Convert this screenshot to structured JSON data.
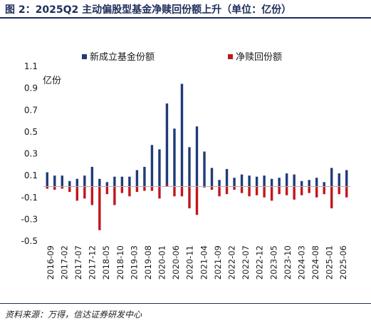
{
  "header": {
    "title": "图 2：2025Q2 主动偏股型基金净赎回份额上升（单位：亿份）"
  },
  "footer": {
    "source": "资料来源：万得，信达证券研发中心"
  },
  "colors": {
    "new_issue": "#1f3b78",
    "net_redemption": "#c0161d",
    "title": "#1f2d5a"
  },
  "chart_data": {
    "type": "bar",
    "ylabel": "亿份",
    "ylim": [
      -0.5,
      1.1
    ],
    "yticks": [
      -0.5,
      -0.3,
      -0.1,
      0.1,
      0.3,
      0.5,
      0.7,
      0.9,
      1.1
    ],
    "ytick_labels": [
      "-0.5",
      "-0.3",
      "-0.1",
      "0.1",
      "0.3",
      "0.5",
      "0.7",
      "0.9",
      "1.1"
    ],
    "legend_position": "top",
    "grid": false,
    "x_tick_labels": [
      "2016-09",
      "2017-02",
      "2017-07",
      "2017-12",
      "2018-05",
      "2018-10",
      "2019-03",
      "2019-08",
      "2020-01",
      "2020-06",
      "2020-11",
      "2021-04",
      "2021-09",
      "2022-02",
      "2022-07",
      "2022-12",
      "2023-05",
      "2023-10",
      "2024-03",
      "2024-08",
      "2025-01",
      "2025-06"
    ],
    "series": [
      {
        "name": "新成立基金份额",
        "values": [
          0.13,
          0.1,
          0.1,
          0.05,
          0.07,
          0.1,
          0.18,
          0.07,
          0.04,
          0.09,
          0.09,
          0.09,
          0.15,
          0.18,
          0.38,
          0.34,
          0.76,
          0.53,
          0.94,
          0.36,
          0.55,
          0.32,
          0.17,
          0.06,
          0.16,
          0.08,
          0.11,
          0.1,
          0.09,
          0.1,
          0.07,
          0.08,
          0.12,
          0.11,
          0.05,
          0.06,
          0.08,
          0.04,
          0.17,
          0.12,
          0.15
        ]
      },
      {
        "name": "净赎回份额",
        "values": [
          -0.02,
          -0.03,
          -0.02,
          -0.05,
          -0.13,
          -0.11,
          -0.17,
          -0.4,
          -0.07,
          -0.17,
          -0.06,
          -0.09,
          -0.05,
          -0.04,
          -0.04,
          -0.11,
          0.02,
          -0.09,
          -0.09,
          -0.2,
          -0.26,
          -0.01,
          -0.03,
          -0.09,
          -0.07,
          -0.03,
          -0.06,
          -0.09,
          -0.08,
          -0.1,
          -0.13,
          -0.07,
          -0.08,
          -0.12,
          -0.08,
          -0.06,
          -0.1,
          -0.07,
          -0.2,
          -0.07,
          -0.1
        ]
      }
    ]
  }
}
